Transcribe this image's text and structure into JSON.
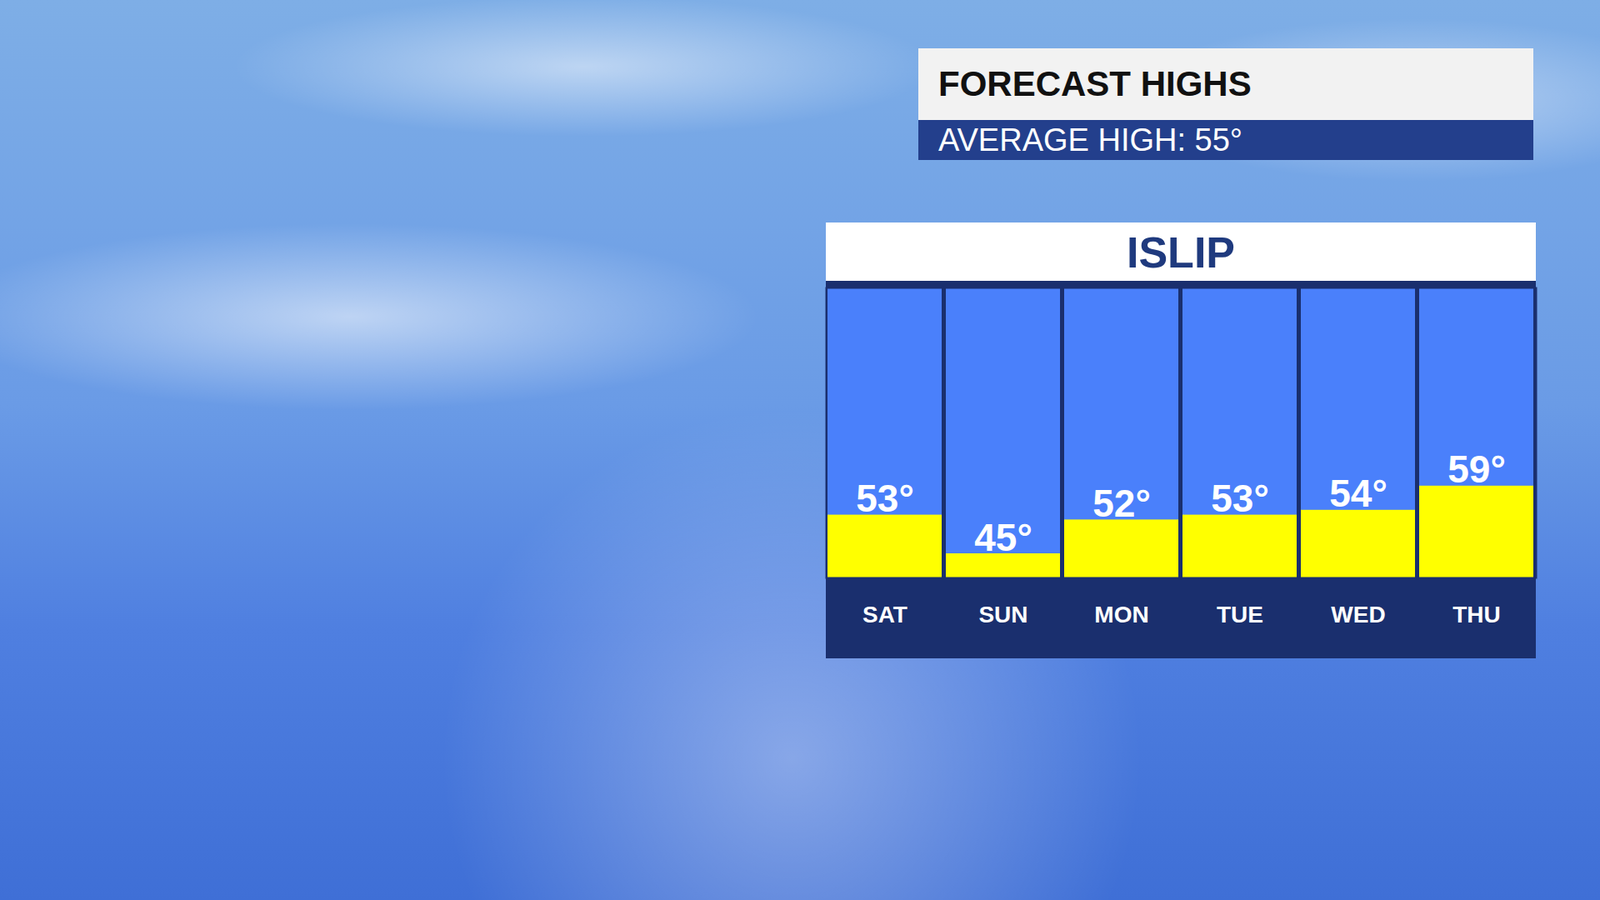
{
  "chart_data": {
    "type": "bar",
    "title": "FORECAST HIGHS",
    "subtitle": "AVERAGE HIGH: 55°",
    "panel_title": "ISLIP",
    "categories": [
      "SAT",
      "SUN",
      "MON",
      "TUE",
      "WED",
      "THU"
    ],
    "values": [
      53,
      45,
      52,
      53,
      54,
      59
    ],
    "value_labels": [
      "53°",
      "45°",
      "52°",
      "53°",
      "54°",
      "59°"
    ],
    "color": "#ffff00",
    "ylim": [
      40,
      100
    ],
    "yticks": [],
    "grid": false,
    "data_labels": true,
    "tick_labels": "x"
  }
}
